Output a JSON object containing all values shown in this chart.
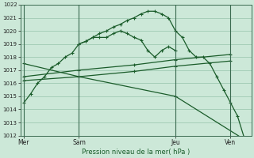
{
  "bg_color": "#cce8d8",
  "grid_color": "#88bba0",
  "line_color": "#1a5c2a",
  "title": "Pression niveau de la mer( hPa )",
  "ylim": [
    1012,
    1022
  ],
  "yticks": [
    1012,
    1013,
    1014,
    1015,
    1016,
    1017,
    1018,
    1019,
    1020,
    1021,
    1022
  ],
  "xtick_labels": [
    "Mer",
    "Sam",
    "Jeu",
    "Ven"
  ],
  "xtick_positions": [
    0,
    8,
    22,
    30
  ],
  "vlines": [
    0,
    8,
    22,
    30
  ],
  "xlim": [
    -0.5,
    33
  ],
  "series1_main": {
    "x": [
      0,
      1,
      2,
      3,
      4,
      5,
      6,
      7,
      8,
      9,
      10,
      11,
      12,
      13,
      14,
      15,
      16,
      17,
      18,
      19,
      20,
      21,
      22,
      23,
      24,
      25,
      26,
      27,
      28,
      29,
      30,
      31,
      32
    ],
    "y": [
      1014.5,
      1015.2,
      1016.0,
      1016.5,
      1017.2,
      1017.5,
      1018.0,
      1018.3,
      1019.0,
      1019.2,
      1019.5,
      1019.8,
      1020.0,
      1020.3,
      1020.5,
      1020.8,
      1021.0,
      1021.3,
      1021.5,
      1021.5,
      1021.3,
      1021.0,
      1020.0,
      1019.5,
      1018.5,
      1018.0,
      1018.0,
      1017.5,
      1016.5,
      1015.5,
      1014.5,
      1013.5,
      1011.8
    ]
  },
  "series2_short": {
    "x": [
      8,
      9,
      10,
      11,
      12,
      13,
      14,
      15,
      16,
      17,
      18,
      19,
      20,
      21,
      22
    ],
    "y": [
      1019.0,
      1019.2,
      1019.5,
      1019.5,
      1019.5,
      1019.8,
      1020.0,
      1019.8,
      1019.5,
      1019.3,
      1018.5,
      1018.0,
      1018.5,
      1018.8,
      1018.5
    ]
  },
  "series3_upper_flat": {
    "x": [
      0,
      8,
      16,
      22,
      30
    ],
    "y": [
      1016.5,
      1017.0,
      1017.4,
      1017.8,
      1018.2
    ]
  },
  "series4_lower_flat": {
    "x": [
      0,
      8,
      16,
      22,
      30
    ],
    "y": [
      1016.2,
      1016.5,
      1016.9,
      1017.3,
      1017.7
    ]
  },
  "series5_diagonal": {
    "x": [
      0,
      8,
      22,
      32
    ],
    "y": [
      1017.5,
      1016.5,
      1015.0,
      1011.7
    ]
  }
}
